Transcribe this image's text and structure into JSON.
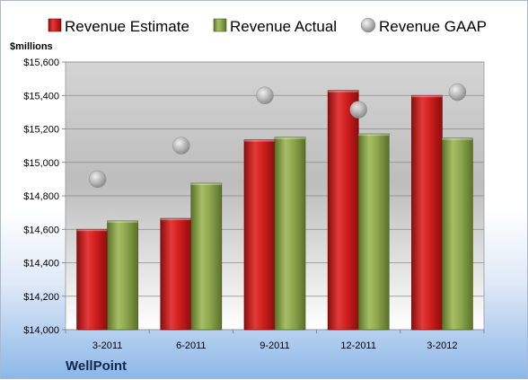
{
  "chart_data": {
    "type": "bar",
    "categories": [
      "3-2011",
      "6-2011",
      "9-2011",
      "12-2011",
      "3-2012"
    ],
    "series": [
      {
        "name": "Revenue Estimate",
        "values": [
          14600,
          14665,
          15135,
          15430,
          15400
        ],
        "color": "#cc1f1f"
      },
      {
        "name": "Revenue Actual",
        "values": [
          14650,
          14875,
          15150,
          15170,
          15145
        ],
        "color": "#8aa64c"
      }
    ],
    "scatter_series": [
      {
        "name": "Revenue GAAP",
        "values": [
          14900,
          15100,
          15400,
          15315,
          15420
        ],
        "color": "#b8b8b8"
      }
    ],
    "ylim": [
      14000,
      15600
    ],
    "ytick_step": 200,
    "yticks": [
      "$14,000",
      "$14,200",
      "$14,400",
      "$14,600",
      "$14,800",
      "$15,000",
      "$15,200",
      "$15,400",
      "$15,600"
    ],
    "ylabel": "$millions",
    "grid": true,
    "legend_position": "top"
  },
  "company": "WellPoint"
}
